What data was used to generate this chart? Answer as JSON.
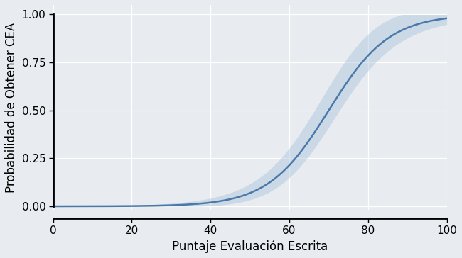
{
  "xlabel": "Puntaje Evaluación Escrita",
  "ylabel": "Probabilidad de Obtener CEA",
  "xlim": [
    0,
    100
  ],
  "ylim": [
    -0.02,
    1.05
  ],
  "xticks": [
    0,
    20,
    40,
    60,
    80,
    100
  ],
  "yticks": [
    0.0,
    0.25,
    0.5,
    0.75,
    1.0
  ],
  "logistic_midpoint": 70,
  "logistic_steepness": 0.13,
  "line_color": "#4a78a8",
  "ci_color": "#a8c4dc",
  "ci_alpha": 0.45,
  "background_color": "#e8ecf0",
  "xlabel_fontsize": 12,
  "ylabel_fontsize": 12,
  "tick_fontsize": 11,
  "line_width": 1.8
}
